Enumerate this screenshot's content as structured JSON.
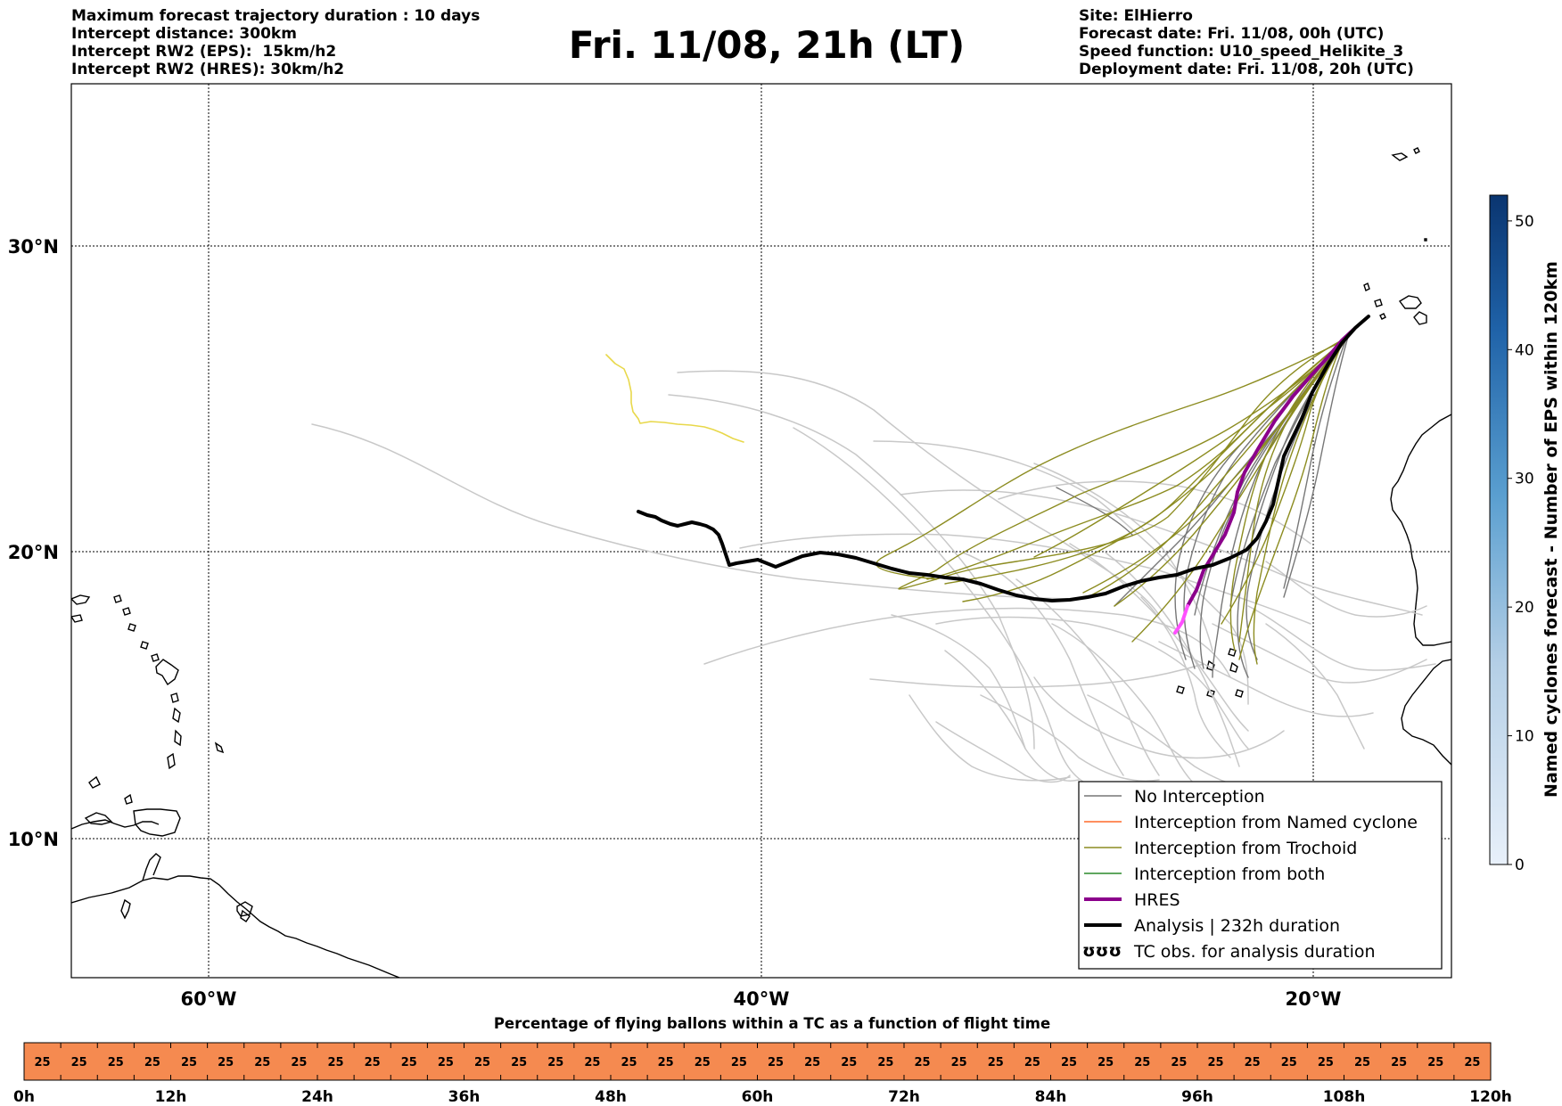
{
  "header": {
    "left": [
      "Maximum forecast trajectory duration : 10 days",
      "Intercept distance: 300km",
      "Intercept RW2 (EPS):  15km/h2",
      "Intercept RW2 (HRES): 30km/h2"
    ],
    "title": "Fri. 11/08, 21h (LT)",
    "right": [
      "Site: ElHierro",
      "Forecast date: Fri. 11/08, 00h (UTC)",
      "Speed function: U10_speed_Helikite_3",
      "Deployment date: Fri. 11/08, 20h (UTC)"
    ]
  },
  "map": {
    "lon_range": [
      -65,
      -15
    ],
    "lat_range": [
      5,
      34
    ],
    "lat_labels": [
      "30°N",
      "20°N",
      "10°N"
    ],
    "lat_values": [
      30,
      20,
      10
    ],
    "lon_labels": [
      "60°W",
      "40°W",
      "20°W"
    ],
    "lon_values": [
      -60,
      -40,
      -20
    ],
    "grid": "dotted",
    "colors": {
      "no_interception": "#777777",
      "eps_member": "#c8c8c8",
      "named_cyclone": "#ff6a2a",
      "trochoid": "#8c8c20",
      "both": "#2a8a2a",
      "hres": "#8b008b",
      "analysis": "#000000",
      "highlight_yellow": "#e8d84a",
      "land_outline": "#000000"
    }
  },
  "legend": {
    "placement": "bottom-right",
    "items": [
      {
        "label": "No Interception",
        "style": "thin",
        "color": "#777777"
      },
      {
        "label": "Interception from Named cyclone",
        "style": "thin",
        "color": "#ff6a2a"
      },
      {
        "label": "Interception from Trochoid",
        "style": "thin",
        "color": "#8c8c20"
      },
      {
        "label": "Interception from both",
        "style": "thin",
        "color": "#2a8a2a"
      },
      {
        "label": "HRES",
        "style": "thick",
        "color": "#8b008b"
      },
      {
        "label": "Analysis | 232h duration",
        "style": "thick",
        "color": "#000000"
      },
      {
        "label": "TC obs. for analysis duration",
        "style": "glyph",
        "glyph": "ʊʊʊ"
      }
    ]
  },
  "colorbar": {
    "label": "Named cyclones forecast - Number of EPS within 120km",
    "ticks": [
      "0",
      "10",
      "20",
      "30",
      "40",
      "50"
    ],
    "range": [
      0,
      52
    ],
    "color_low": "#e8f0fa",
    "color_high": "#0a3570"
  },
  "timeline": {
    "title": "Percentage of flying ballons within a TC as a function of flight time",
    "values": [
      25,
      25,
      25,
      25,
      25,
      25,
      25,
      25,
      25,
      25,
      25,
      25,
      25,
      25,
      25,
      25,
      25,
      25,
      25,
      25,
      25,
      25,
      25,
      25,
      25,
      25,
      25,
      25,
      25,
      25,
      25,
      25,
      25,
      25,
      25,
      25,
      25,
      25,
      25,
      25
    ],
    "ticks": [
      "0h",
      "12h",
      "24h",
      "36h",
      "48h",
      "60h",
      "72h",
      "84h",
      "96h",
      "108h",
      "120h"
    ],
    "fill_color": "#f58a50"
  }
}
